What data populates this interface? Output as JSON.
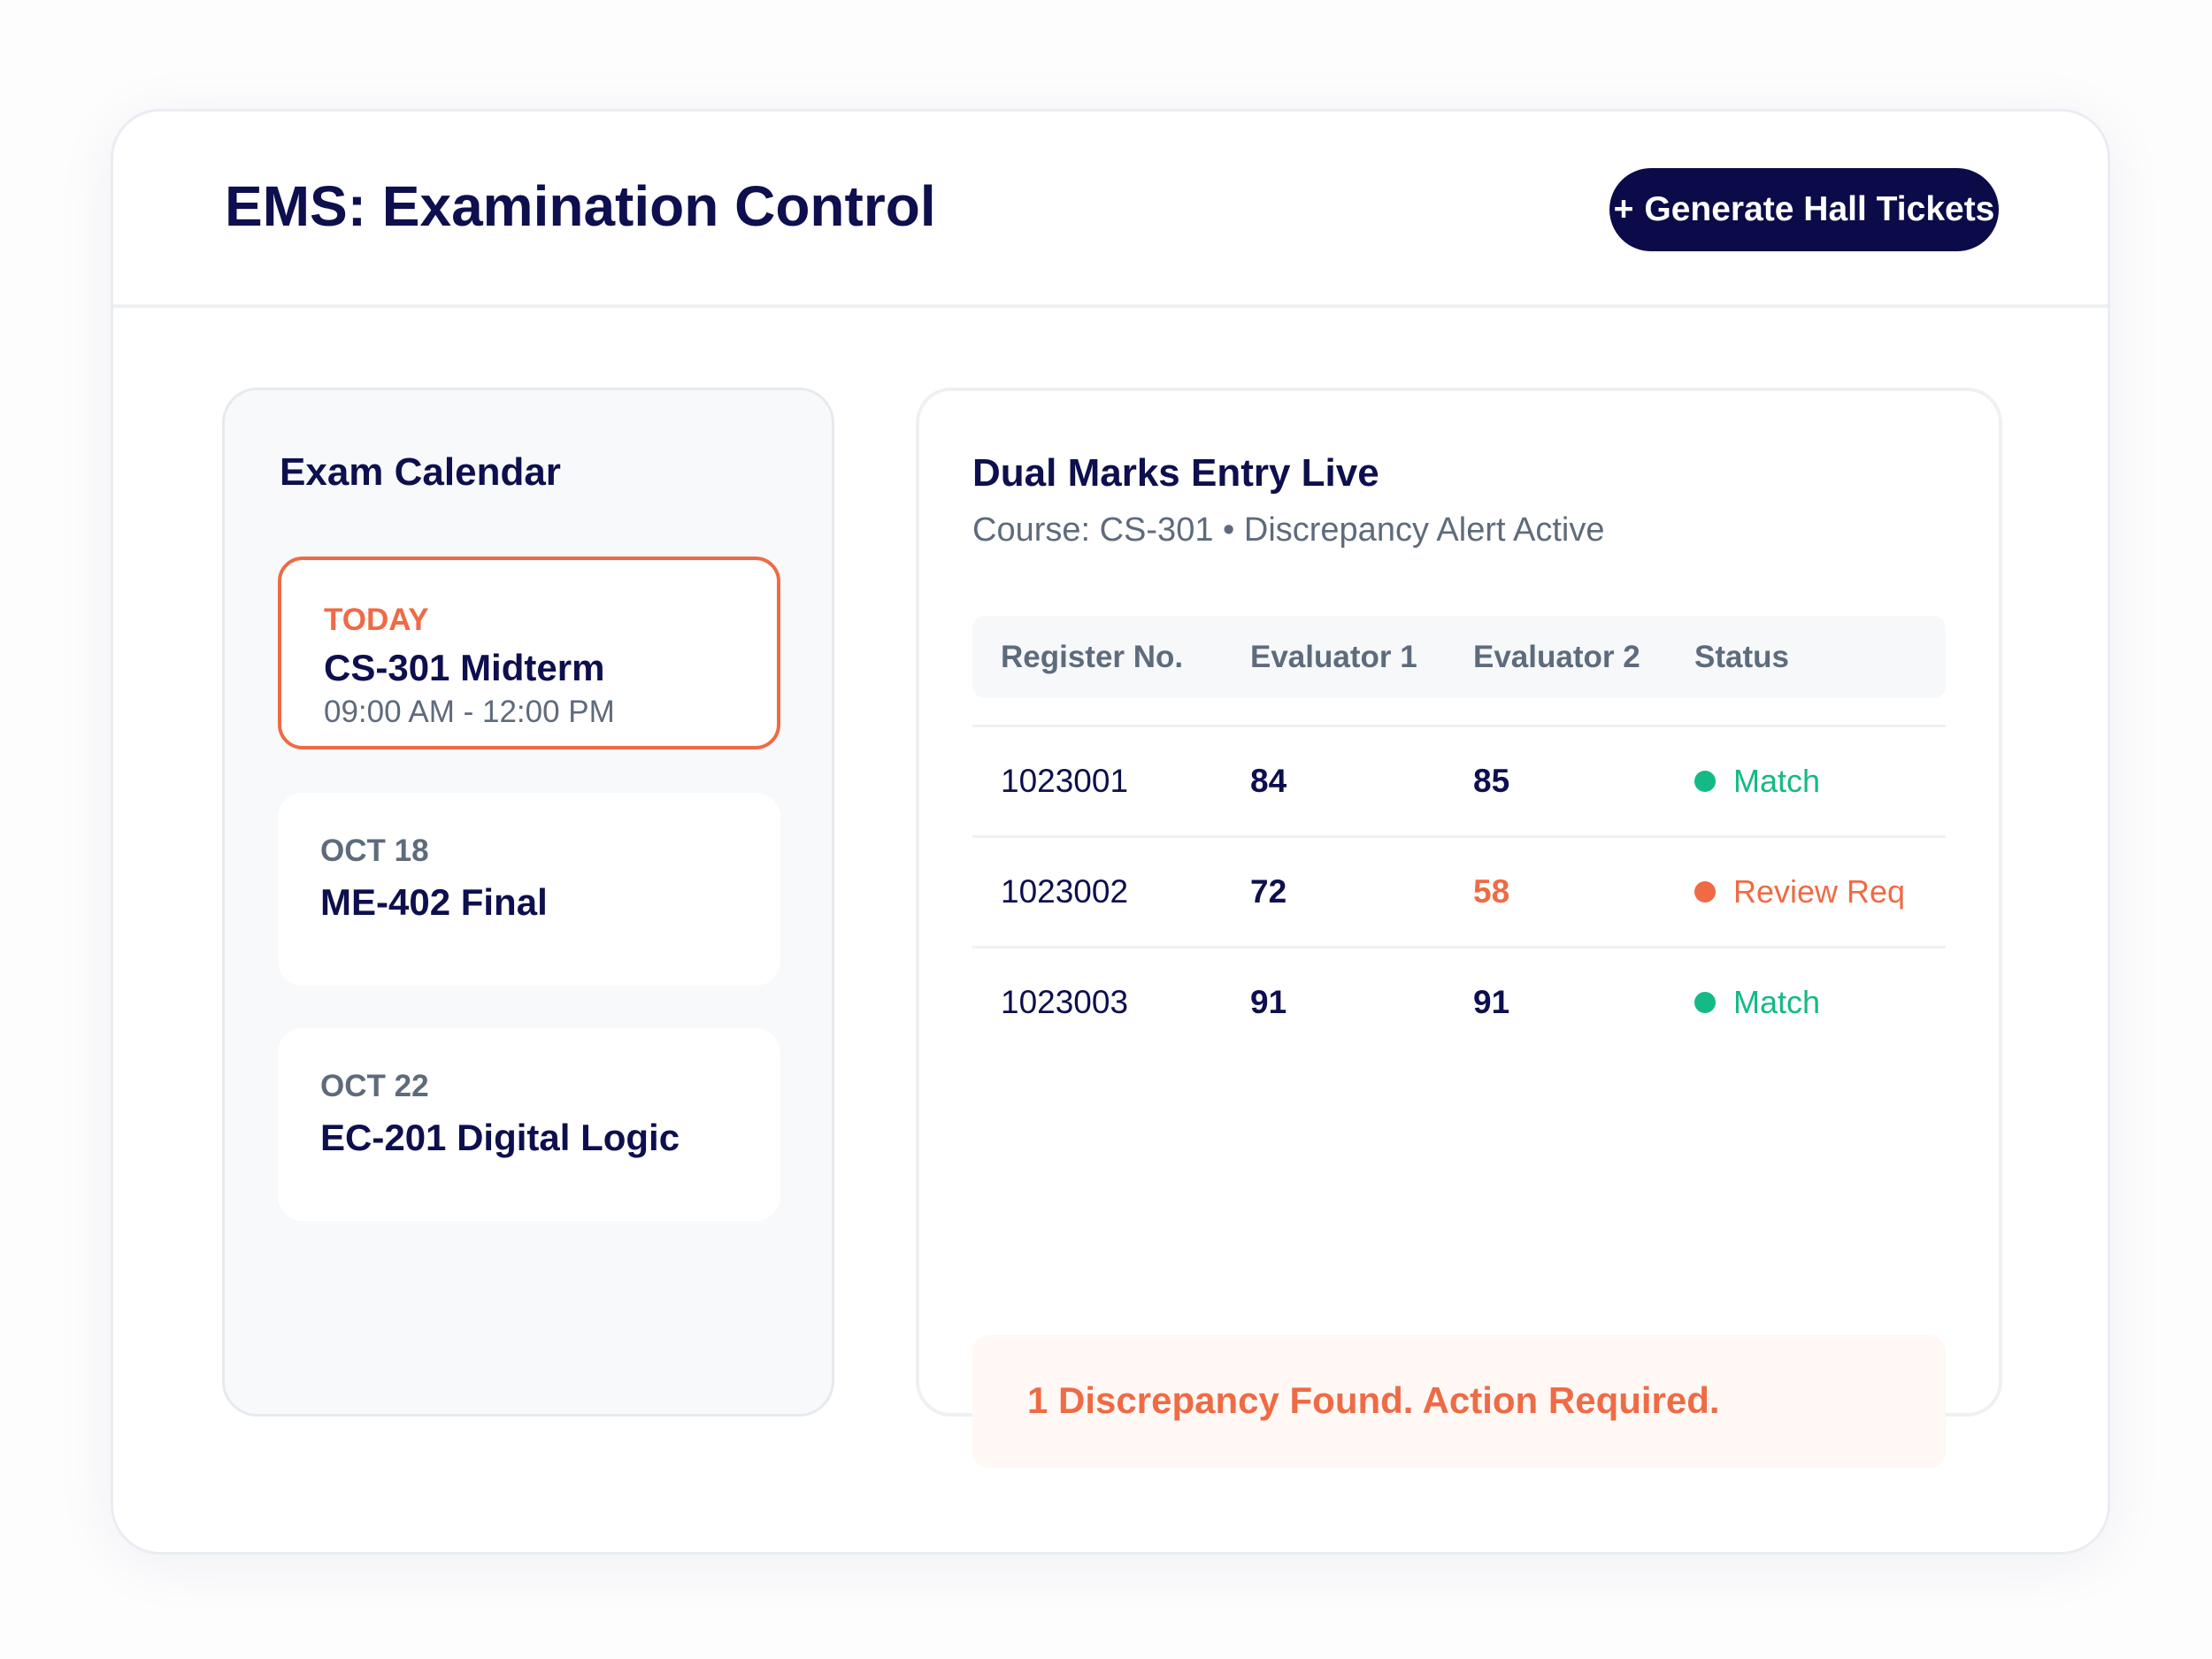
{
  "header": {
    "title": "EMS: Examination Control",
    "generate_button": {
      "icon": "+",
      "label": "Generate Hall Tickets"
    }
  },
  "calendar": {
    "heading": "Exam Calendar",
    "exams": [
      {
        "date": "TODAY",
        "name": "CS-301 Midterm",
        "time": "09:00 AM - 12:00 PM",
        "highlighted": true
      },
      {
        "date": "OCT 18",
        "name": "ME-402 Final"
      },
      {
        "date": "OCT 22",
        "name": "EC-201 Digital Logic"
      }
    ]
  },
  "marks": {
    "heading": "Dual Marks Entry Live",
    "subtitle": "Course: CS-301 • Discrepancy Alert Active",
    "columns": [
      "Register No.",
      "Evaluator 1",
      "Evaluator 2",
      "Status"
    ],
    "rows": [
      {
        "register_no": "1023001",
        "evaluator_1": "84",
        "evaluator_2": "85",
        "status": "Match"
      },
      {
        "register_no": "1023002",
        "evaluator_1": "72",
        "evaluator_2": "58",
        "status": "Review Req"
      },
      {
        "register_no": "1023003",
        "evaluator_1": "91",
        "evaluator_2": "91",
        "status": "Match"
      }
    ],
    "alert": "1 Discrepancy Found. Action Required."
  },
  "colors": {
    "primary": "#0b0b4a",
    "accent": "#ee6b45",
    "match": "#15b985",
    "review": "#ee6b45",
    "muted": "#5e6b7c"
  },
  "icons": {
    "status_match": "status-dot-green",
    "status_review": "status-dot-orange",
    "generate": "plus-icon"
  }
}
